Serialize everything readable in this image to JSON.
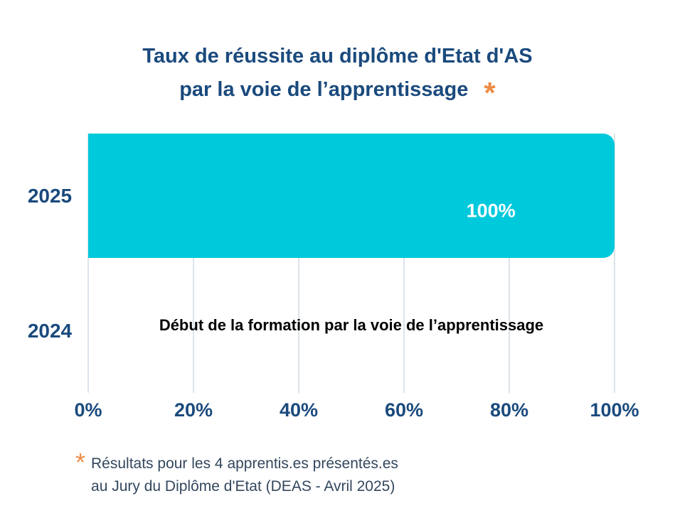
{
  "title": {
    "line1": "Taux de réussite au diplôme d'Etat d'AS",
    "line2": "par la voie de l’apprentissage",
    "asterisk": "*"
  },
  "chart_data": {
    "type": "bar",
    "orientation": "horizontal",
    "title": "Taux de réussite au diplôme d'Etat d'AS par la voie de l’apprentissage *",
    "categories": [
      "2025",
      "2024"
    ],
    "series": [
      {
        "name": "Taux de réussite",
        "values": [
          100,
          null
        ]
      }
    ],
    "value_labels": [
      "100%",
      ""
    ],
    "annotations": {
      "row_2024": "Début de la formation par la voie de l’apprentissage"
    },
    "x_ticks": [
      "0%",
      "20%",
      "40%",
      "60%",
      "80%",
      "100%"
    ],
    "xlim": [
      0,
      100
    ],
    "grid": true,
    "legend": false,
    "bar_color": "#00C9DC"
  },
  "labels": {
    "bar_value": "100%",
    "row_2024_text": "Début de la formation par la voie de l’apprentissage"
  },
  "footnote": {
    "asterisk": "*",
    "line1": "Résultats pour les 4 apprentis.es présentés.es",
    "line2": "au Jury du Diplôme d'Etat (DEAS - Avril 2025)"
  },
  "colors": {
    "navy": "#1A4A7D",
    "bar_cyan": "#00C9DC",
    "orange_asterisk": "#EE8C45",
    "footnote_text": "#33475E",
    "gridline": "#DCE4EB",
    "bar_value_text": "#FFFFFF",
    "annotation_text": "#000000",
    "background": "#FFFFFF"
  }
}
